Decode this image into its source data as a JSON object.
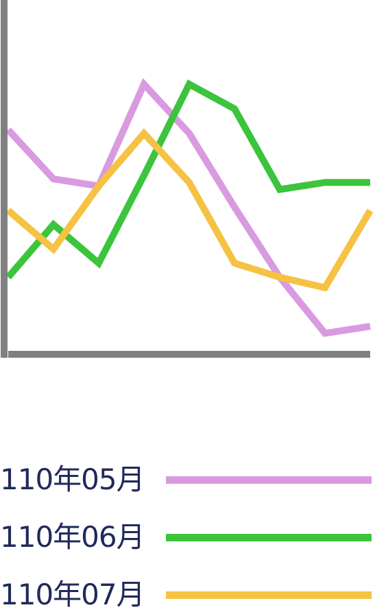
{
  "chart_data": {
    "type": "line",
    "x": [
      1,
      2,
      3,
      4,
      5,
      6,
      7,
      8,
      9
    ],
    "series": [
      {
        "name": "110年05月",
        "color": "#d99ae0",
        "values": [
          63,
          49,
          47,
          76,
          62,
          41,
          21,
          5,
          7
        ]
      },
      {
        "name": "110年06月",
        "color": "#3cc43c",
        "values": [
          21,
          36,
          25,
          50,
          76,
          69,
          46,
          48,
          48
        ]
      },
      {
        "name": "110年07月",
        "color": "#f5c244",
        "values": [
          40,
          29,
          47,
          62,
          48,
          25,
          21,
          18,
          40
        ]
      }
    ],
    "ylim": [
      0,
      100
    ],
    "grid": false,
    "legend_position": "bottom",
    "axis_color": "#808080"
  }
}
